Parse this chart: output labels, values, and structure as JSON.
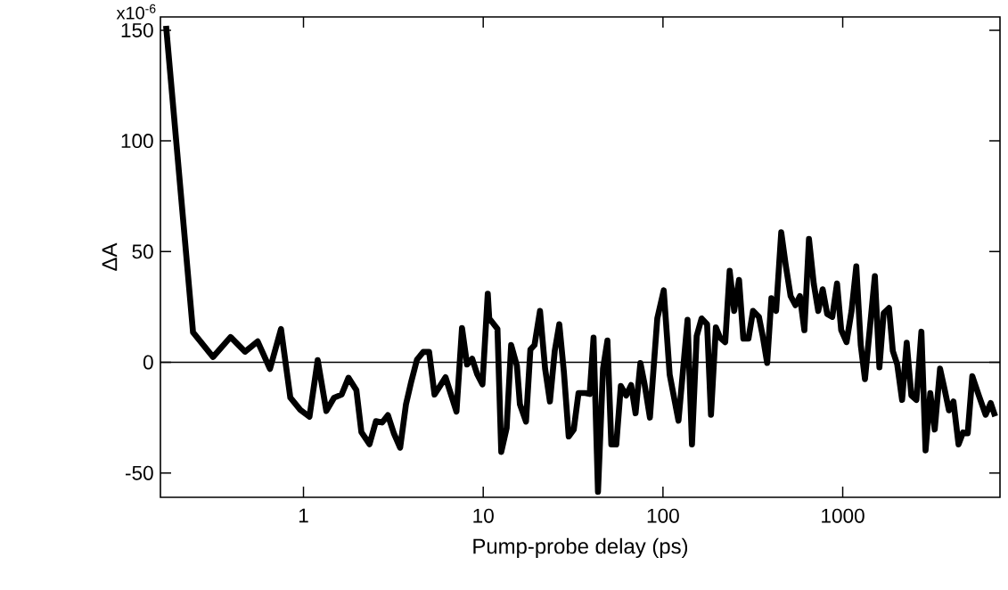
{
  "chart_data": {
    "type": "line",
    "xlabel": "Pump-probe delay (ps)",
    "ylabel": "ΔA",
    "log": "x",
    "marker": "none",
    "line_style": "solid",
    "color": "#000000",
    "x": [
      0.172,
      0.243,
      0.314,
      0.393,
      0.473,
      0.556,
      0.651,
      0.75,
      0.845,
      0.96,
      1.08,
      1.2,
      1.34,
      1.48,
      1.63,
      1.78,
      1.97,
      2.1,
      2.33,
      2.53,
      2.74,
      2.95,
      3.19,
      3.45,
      3.72,
      3.98,
      4.28,
      4.64,
      5.0,
      5.36,
      6.17,
      7.1,
      7.62,
      8.13,
      8.68,
      9.25,
      9.9,
      10.6,
      10.8,
      12.0,
      12.6,
      13.5,
      14.3,
      15.4,
      16.0,
      17.3,
      18.3,
      19.3,
      20.7,
      22.1,
      23.5,
      25.0,
      26.5,
      28.1,
      29.9,
      31.9,
      33.9,
      36.9,
      39.1,
      41.1,
      43.5,
      46.4,
      49.1,
      51.6,
      55.0,
      58.3,
      62.4,
      66.5,
      70.4,
      74.9,
      78.9,
      84.6,
      93,
      101,
      109,
      122,
      137,
      145,
      154,
      164,
      176,
      185,
      197,
      208,
      222,
      235,
      249,
      265,
      280,
      299,
      317,
      342,
      359,
      380,
      401,
      426,
      455,
      482,
      513,
      546,
      578,
      612,
      649,
      691,
      731,
      774,
      820,
      875,
      930,
      981,
      1050,
      1120,
      1190,
      1260,
      1330,
      1510,
      1600,
      1690,
      1810,
      1900,
      2010,
      2140,
      2270,
      2410,
      2570,
      2740,
      2890,
      3070,
      3250,
      3480,
      3690,
      3900,
      4130,
      4410,
      4670,
      4960,
      5260,
      5720,
      6240,
      6660,
      7050
    ],
    "values": [
      152,
      13.5,
      2.4,
      11.4,
      4.8,
      9.4,
      -3,
      15,
      -16,
      -21.5,
      -24.6,
      1,
      -22,
      -16,
      -14.6,
      -7,
      -12.6,
      -31.6,
      -37,
      -26.6,
      -27.2,
      -23.9,
      -32.3,
      -38.6,
      -18.9,
      -8.7,
      1.2,
      4.7,
      4.7,
      -14.6,
      -6.8,
      -22.3,
      15.5,
      -1,
      1.6,
      -5.3,
      -10,
      31,
      19.8,
      15.1,
      -40.5,
      -29.7,
      7.8,
      -1.6,
      -19,
      -26.8,
      5.7,
      7.8,
      23.2,
      -2.9,
      -17.7,
      5.1,
      17.2,
      -4.3,
      -33.5,
      -30.4,
      -13.9,
      -13.9,
      -14.3,
      11.1,
      -58.5,
      -2.9,
      9.8,
      -37.1,
      -37.1,
      -10.7,
      -15,
      -10.3,
      -23,
      -0.3,
      -9.6,
      -25,
      19.8,
      32.5,
      -5.6,
      -26.4,
      19.2,
      -37.1,
      11.8,
      19.8,
      17.2,
      -23.7,
      15.8,
      11.1,
      9.1,
      41.3,
      23.2,
      37.2,
      10.7,
      10.7,
      23.2,
      20.5,
      11.8,
      -0.3,
      28.9,
      23.2,
      58.7,
      43.9,
      29.9,
      25.8,
      29.9,
      14.5,
      55.7,
      35.2,
      23.2,
      33,
      21.8,
      20.5,
      35.6,
      14.5,
      9.1,
      23.2,
      43.3,
      7.8,
      -7.6,
      38.9,
      -2.3,
      22.2,
      24.5,
      5.1,
      -0.9,
      -17,
      8.8,
      -15,
      -17,
      13.8,
      -39.8,
      -13.9,
      -30.4,
      -2.9,
      -12.3,
      -21.7,
      -17.7,
      -37.1,
      -31.7,
      -32.1,
      -6.3,
      -15,
      -23.7,
      -18.4,
      -24.4
    ],
    "xlim": [
      0.16,
      7500
    ],
    "ylim": [
      -61,
      156
    ],
    "xticks": [
      1,
      10,
      100,
      1000
    ],
    "yticks": [
      -50,
      0,
      50,
      100,
      150
    ],
    "annotations": [
      "x10$^{-6}$"
    ],
    "ref_lines": [
      {
        "axis": "y",
        "value": 0,
        "color": "#000000"
      }
    ]
  }
}
